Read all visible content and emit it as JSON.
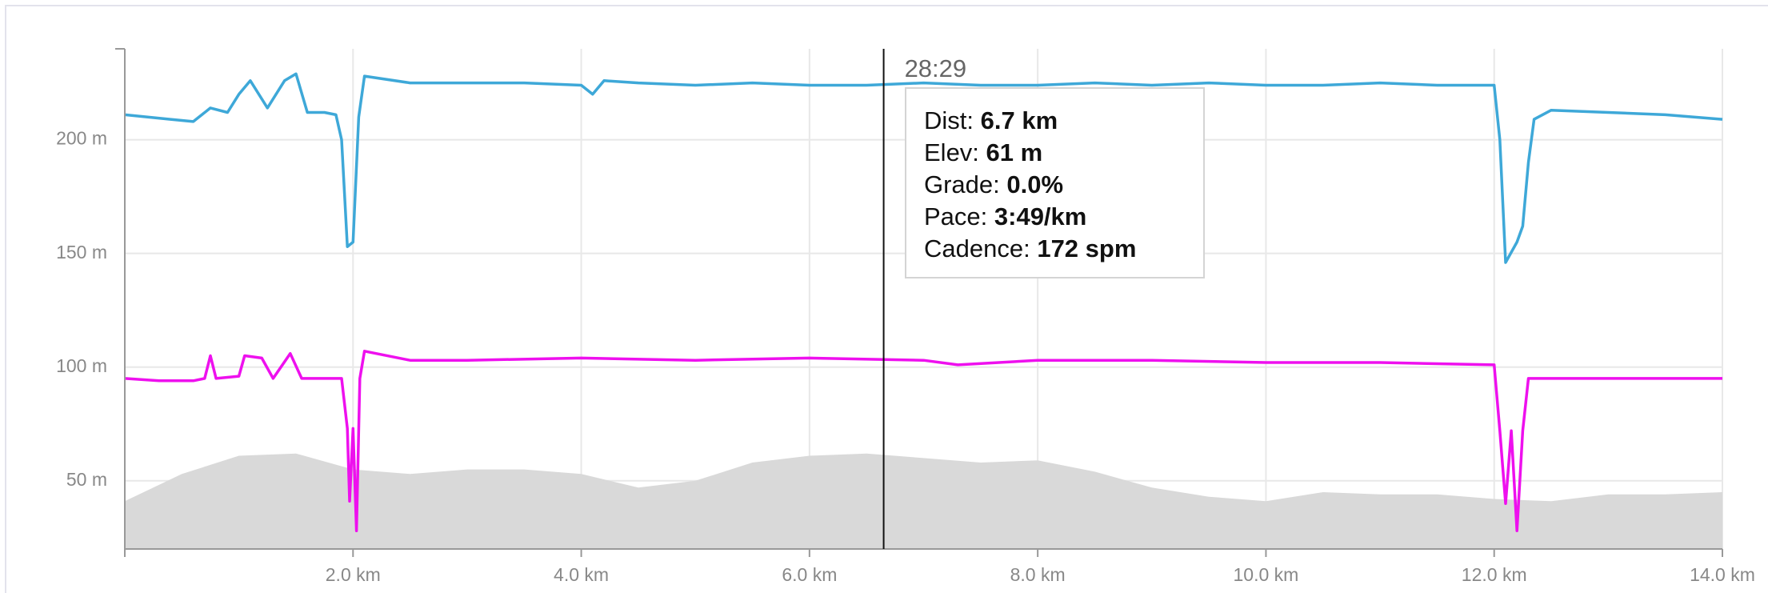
{
  "chart_data": {
    "type": "line",
    "xlim": [
      0,
      14
    ],
    "ylim": [
      20,
      240
    ],
    "xticks": [
      {
        "value": 2,
        "label": "2.0 km"
      },
      {
        "value": 4,
        "label": "4.0 km"
      },
      {
        "value": 6,
        "label": "6.0 km"
      },
      {
        "value": 8,
        "label": "8.0 km"
      },
      {
        "value": 10,
        "label": "10.0 km"
      },
      {
        "value": 12,
        "label": "12.0 km"
      },
      {
        "value": 14,
        "label": "14.0 km"
      }
    ],
    "yticks": [
      {
        "value": 50,
        "label": "50 m"
      },
      {
        "value": 100,
        "label": "100 m"
      },
      {
        "value": 150,
        "label": "150 m"
      },
      {
        "value": 200,
        "label": "200 m"
      }
    ],
    "grid": true,
    "series": [
      {
        "color": "#d9d9d9",
        "fill": true,
        "x": [
          0,
          0.5,
          1,
          1.5,
          2,
          2.5,
          3,
          3.5,
          4,
          4.5,
          5,
          5.5,
          6,
          6.5,
          7,
          7.5,
          8,
          8.5,
          9,
          9.5,
          10,
          10.5,
          11,
          11.5,
          12,
          12.5,
          13,
          13.5,
          14
        ],
        "values": [
          41,
          53,
          61,
          62,
          55,
          53,
          55,
          55,
          53,
          47,
          50,
          58,
          61,
          62,
          60,
          58,
          59,
          54,
          47,
          43,
          41,
          45,
          44,
          44,
          42,
          41,
          44,
          44,
          45
        ]
      },
      {
        "color": "#3ea8d8",
        "fill": false,
        "x": [
          0,
          0.2,
          0.4,
          0.6,
          0.75,
          0.9,
          1.0,
          1.1,
          1.25,
          1.4,
          1.5,
          1.6,
          1.75,
          1.85,
          1.9,
          1.95,
          2.0,
          2.05,
          2.1,
          2.5,
          3,
          3.5,
          4,
          4.1,
          4.2,
          4.5,
          5,
          5.5,
          6,
          6.5,
          7,
          7.5,
          8,
          8.5,
          9,
          9.5,
          10,
          10.5,
          11,
          11.5,
          12,
          12.05,
          12.1,
          12.2,
          12.25,
          12.3,
          12.35,
          12.5,
          13,
          13.5,
          14
        ],
        "values": [
          211,
          210,
          209,
          208,
          214,
          212,
          220,
          226,
          214,
          226,
          229,
          212,
          212,
          211,
          200,
          153,
          155,
          210,
          228,
          225,
          225,
          225,
          224,
          220,
          226,
          225,
          224,
          225,
          224,
          224,
          225,
          224,
          224,
          225,
          224,
          225,
          224,
          224,
          225,
          224,
          224,
          200,
          146,
          155,
          162,
          190,
          209,
          213,
          212,
          211,
          209
        ]
      },
      {
        "color": "#ee10ee",
        "fill": false,
        "x": [
          0,
          0.3,
          0.6,
          0.7,
          0.75,
          0.8,
          1.0,
          1.05,
          1.2,
          1.3,
          1.45,
          1.55,
          1.9,
          1.95,
          1.97,
          2.0,
          2.03,
          2.06,
          2.1,
          2.5,
          3,
          4,
          5,
          6,
          7,
          7.3,
          8,
          9,
          10,
          11,
          12,
          12.05,
          12.1,
          12.15,
          12.2,
          12.25,
          12.3,
          13,
          14
        ],
        "values": [
          95,
          94,
          94,
          95,
          105,
          95,
          96,
          105,
          104,
          95,
          106,
          95,
          95,
          73,
          41,
          73,
          28,
          95,
          107,
          103,
          103,
          104,
          103,
          104,
          103,
          101,
          103,
          103,
          102,
          102,
          101,
          72,
          40,
          72,
          28,
          72,
          95,
          95,
          95
        ]
      }
    ],
    "cursor_x": 6.65,
    "cursor_time": "28:29",
    "tooltip": [
      {
        "label": "Dist: ",
        "value": "6.7 km"
      },
      {
        "label": "Elev: ",
        "value": "61 m"
      },
      {
        "label": "Grade: ",
        "value": "0.0%"
      },
      {
        "label": "Pace: ",
        "value": "3:49/km"
      },
      {
        "label": "Cadence: ",
        "value": "172 spm"
      }
    ]
  }
}
